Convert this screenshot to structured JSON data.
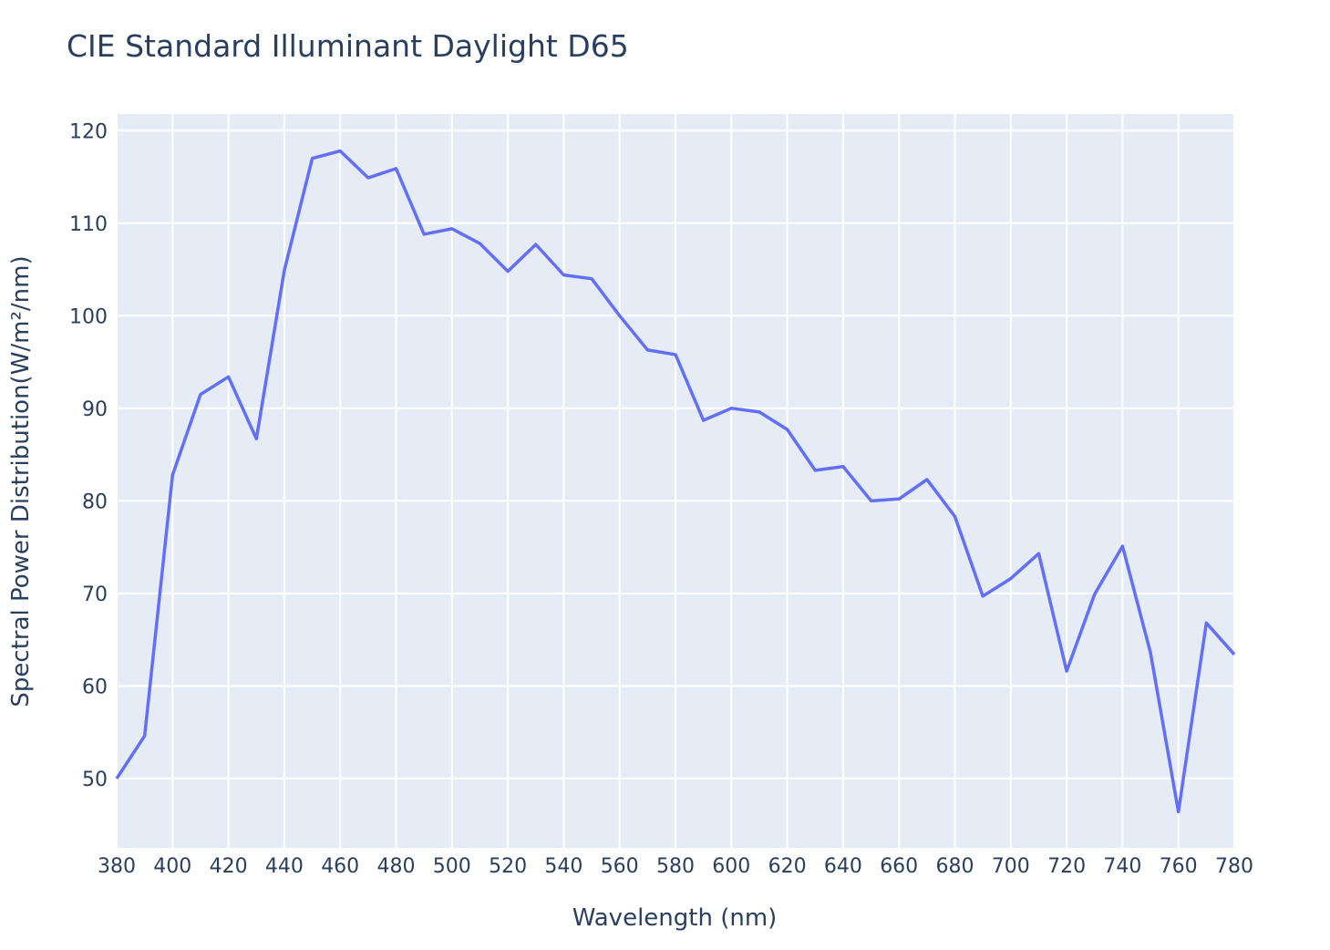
{
  "chart_data": {
    "type": "line",
    "title": "CIE Standard Illuminant Daylight D65",
    "xlabel": "Wavelength (nm)",
    "ylabel": "Spectral Power Distribution(W/m²/nm)",
    "xlim": [
      380,
      780
    ],
    "ylim": [
      42.5,
      121.8
    ],
    "x_ticks": [
      380,
      400,
      420,
      440,
      460,
      480,
      500,
      520,
      540,
      560,
      580,
      600,
      620,
      640,
      660,
      680,
      700,
      720,
      740,
      760,
      780
    ],
    "y_ticks": [
      50,
      60,
      70,
      80,
      90,
      100,
      110,
      120
    ],
    "grid": true,
    "colors": {
      "line": "#636efa",
      "plot_bg": "#e5ecf6",
      "grid": "#ffffff",
      "text": "#2a3f5f"
    },
    "series": [
      {
        "x": [
          380,
          390,
          400,
          410,
          420,
          430,
          440,
          450,
          460,
          470,
          480,
          490,
          500,
          510,
          520,
          530,
          540,
          550,
          560,
          570,
          580,
          590,
          600,
          610,
          620,
          630,
          640,
          650,
          660,
          670,
          680,
          690,
          700,
          710,
          720,
          730,
          740,
          750,
          760,
          770,
          780
        ],
        "values": [
          50.0,
          54.6,
          82.8,
          91.5,
          93.4,
          86.7,
          104.9,
          117.0,
          117.8,
          114.9,
          115.9,
          108.8,
          109.4,
          107.8,
          104.8,
          107.7,
          104.4,
          104.0,
          100.0,
          96.3,
          95.8,
          88.7,
          90.0,
          89.6,
          87.7,
          83.3,
          83.7,
          80.0,
          80.2,
          82.3,
          78.3,
          69.7,
          71.6,
          74.3,
          61.6,
          69.9,
          75.1,
          63.6,
          46.4,
          66.8,
          63.4
        ]
      }
    ]
  }
}
